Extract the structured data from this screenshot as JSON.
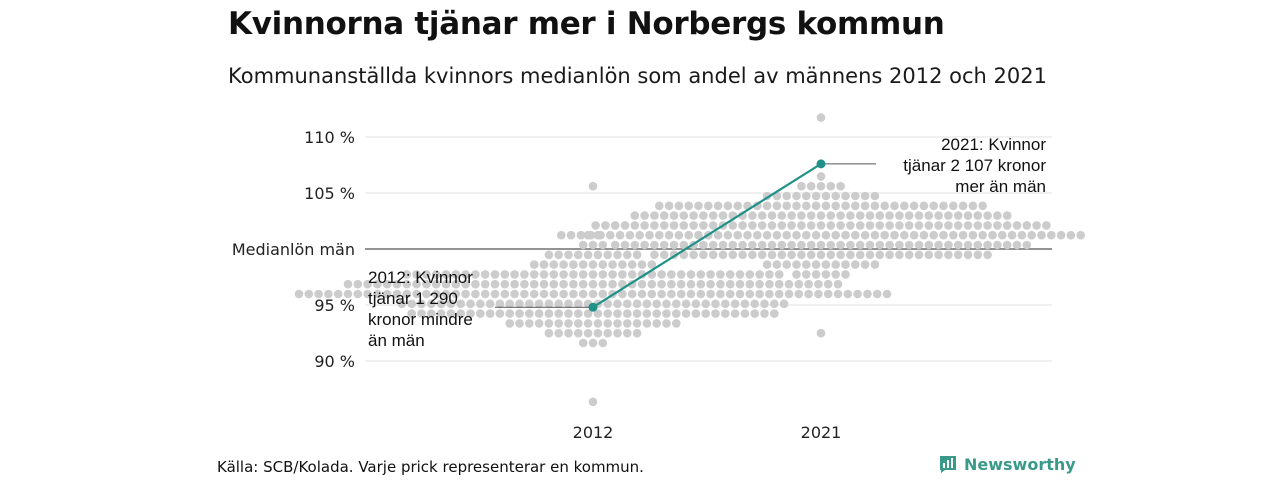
{
  "header": {
    "title": "Kvinnorna tjänar mer i Norbergs kommun",
    "subtitle": "Kommunanställda kvinnors medianlön som andel av männens 2012 och 2021"
  },
  "footer": {
    "source": "Källa: SCB/Kolada. Varje prick representerar en kommun.",
    "brand": "Newsworthy"
  },
  "colors": {
    "dots": "#cccccc",
    "highlight": "#1f9188",
    "grid": "#e2e2e2",
    "baseline": "#555555",
    "brand": "#3a9a8a"
  },
  "chart_data": {
    "type": "scatter",
    "subtype": "beeswarm",
    "categories": [
      "2012",
      "2021"
    ],
    "y_ticks": [
      {
        "value": 90,
        "label": "90 %"
      },
      {
        "value": 95,
        "label": "95 %"
      },
      {
        "value": 100,
        "label": "Medianlön män"
      },
      {
        "value": 105,
        "label": "105 %"
      },
      {
        "value": 110,
        "label": "110 %"
      }
    ],
    "ylim": [
      85,
      112
    ],
    "baseline_value": 100,
    "highlight": {
      "points": [
        {
          "category": "2012",
          "value": 94.8
        },
        {
          "category": "2021",
          "value": 107.6
        }
      ],
      "annotations": [
        {
          "category": "2012",
          "value": 94.8,
          "lines": [
            "2012: Kvinnor",
            "tjänar 1 290",
            "kronor mindre",
            "än män"
          ]
        },
        {
          "category": "2021",
          "value": 107.6,
          "lines": [
            "2021: Kvinnor",
            "tjänar 2 107 kronor",
            "mer än män"
          ]
        }
      ]
    },
    "distributions": [
      {
        "category": "2012",
        "center": 96.0,
        "min": 86.5,
        "max": 105.3,
        "count": 290
      },
      {
        "category": "2021",
        "center": 101.5,
        "min": 92.5,
        "max": 111.3,
        "count": 290
      }
    ],
    "grid": true
  }
}
